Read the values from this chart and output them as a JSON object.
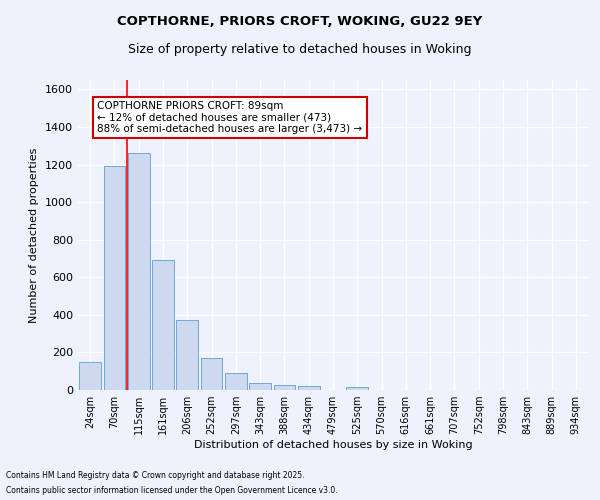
{
  "title1": "COPTHORNE, PRIORS CROFT, WOKING, GU22 9EY",
  "title2": "Size of property relative to detached houses in Woking",
  "xlabel": "Distribution of detached houses by size in Woking",
  "ylabel": "Number of detached properties",
  "bar_labels": [
    "24sqm",
    "70sqm",
    "115sqm",
    "161sqm",
    "206sqm",
    "252sqm",
    "297sqm",
    "343sqm",
    "388sqm",
    "434sqm",
    "479sqm",
    "525sqm",
    "570sqm",
    "616sqm",
    "661sqm",
    "707sqm",
    "752sqm",
    "798sqm",
    "843sqm",
    "889sqm",
    "934sqm"
  ],
  "bar_values": [
    150,
    1190,
    1260,
    690,
    375,
    170,
    90,
    35,
    25,
    20,
    0,
    15,
    0,
    0,
    0,
    0,
    0,
    0,
    0,
    0,
    0
  ],
  "bar_color": "#ccd9ee",
  "bar_edge_color": "#6fa8d8",
  "red_line_x": 1.5,
  "ylim": [
    0,
    1650
  ],
  "yticks": [
    0,
    200,
    400,
    600,
    800,
    1000,
    1200,
    1400,
    1600
  ],
  "annotation_text": "COPTHORNE PRIORS CROFT: 89sqm\n← 12% of detached houses are smaller (473)\n88% of semi-detached houses are larger (3,473) →",
  "footnote1": "Contains HM Land Registry data © Crown copyright and database right 2025.",
  "footnote2": "Contains public sector information licensed under the Open Government Licence v3.0.",
  "bg_color": "#edf2fc",
  "grid_color": "#ffffff",
  "annotation_box_color": "#ffffff",
  "annotation_box_edge": "#cc0000"
}
